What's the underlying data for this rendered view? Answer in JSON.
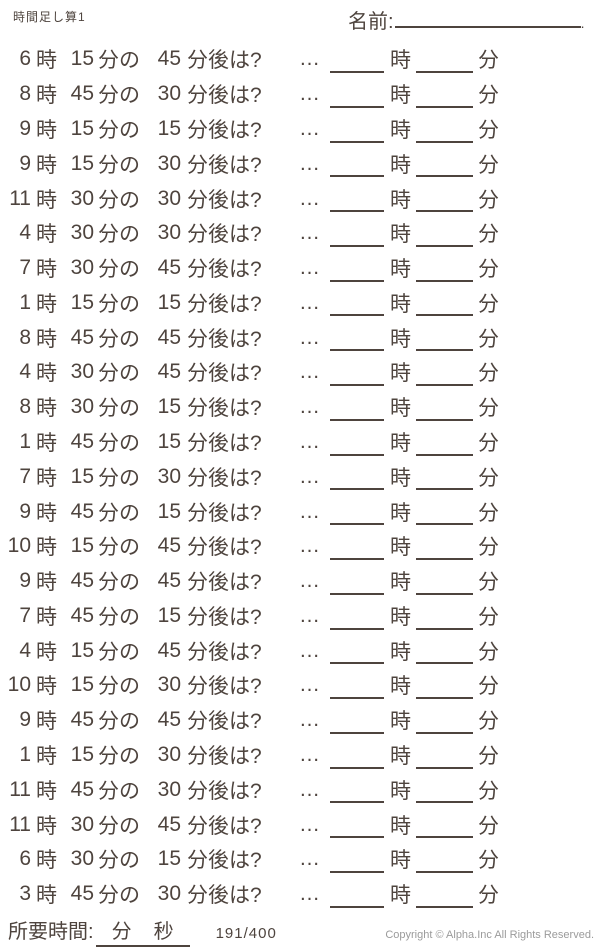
{
  "title": "時間足し算1",
  "name": {
    "label": "名前:",
    "line_end_mark": "."
  },
  "question_format": {
    "hour_label": "時",
    "minute_label": "分の",
    "after_label": "分後は?",
    "ellipsis": "…",
    "answer_hour_label": "時",
    "answer_minute_label": "分"
  },
  "questions": [
    {
      "hour": "6",
      "minute": "15",
      "after": "45"
    },
    {
      "hour": "8",
      "minute": "45",
      "after": "30"
    },
    {
      "hour": "9",
      "minute": "15",
      "after": "15"
    },
    {
      "hour": "9",
      "minute": "15",
      "after": "30"
    },
    {
      "hour": "11",
      "minute": "30",
      "after": "30"
    },
    {
      "hour": "4",
      "minute": "30",
      "after": "30"
    },
    {
      "hour": "7",
      "minute": "30",
      "after": "45"
    },
    {
      "hour": "1",
      "minute": "15",
      "after": "15"
    },
    {
      "hour": "8",
      "minute": "45",
      "after": "45"
    },
    {
      "hour": "4",
      "minute": "30",
      "after": "45"
    },
    {
      "hour": "8",
      "minute": "30",
      "after": "15"
    },
    {
      "hour": "1",
      "minute": "45",
      "after": "15"
    },
    {
      "hour": "7",
      "minute": "15",
      "after": "30"
    },
    {
      "hour": "9",
      "minute": "45",
      "after": "15"
    },
    {
      "hour": "10",
      "minute": "15",
      "after": "45"
    },
    {
      "hour": "9",
      "minute": "45",
      "after": "45"
    },
    {
      "hour": "7",
      "minute": "45",
      "after": "15"
    },
    {
      "hour": "4",
      "minute": "15",
      "after": "45"
    },
    {
      "hour": "10",
      "minute": "15",
      "after": "30"
    },
    {
      "hour": "9",
      "minute": "45",
      "after": "45"
    },
    {
      "hour": "1",
      "minute": "15",
      "after": "30"
    },
    {
      "hour": "11",
      "minute": "45",
      "after": "30"
    },
    {
      "hour": "11",
      "minute": "30",
      "after": "45"
    },
    {
      "hour": "6",
      "minute": "30",
      "after": "15"
    },
    {
      "hour": "3",
      "minute": "45",
      "after": "30"
    }
  ],
  "footer": {
    "elapsed_label": "所要時間:",
    "minute_label": "分",
    "second_label": "秒",
    "page_indicator": "191/400",
    "copyright": "Copyright ©  Alpha.Inc All Rights Reserved."
  },
  "colors": {
    "ink": "#4e443e",
    "muted": "#9b9b9b"
  }
}
